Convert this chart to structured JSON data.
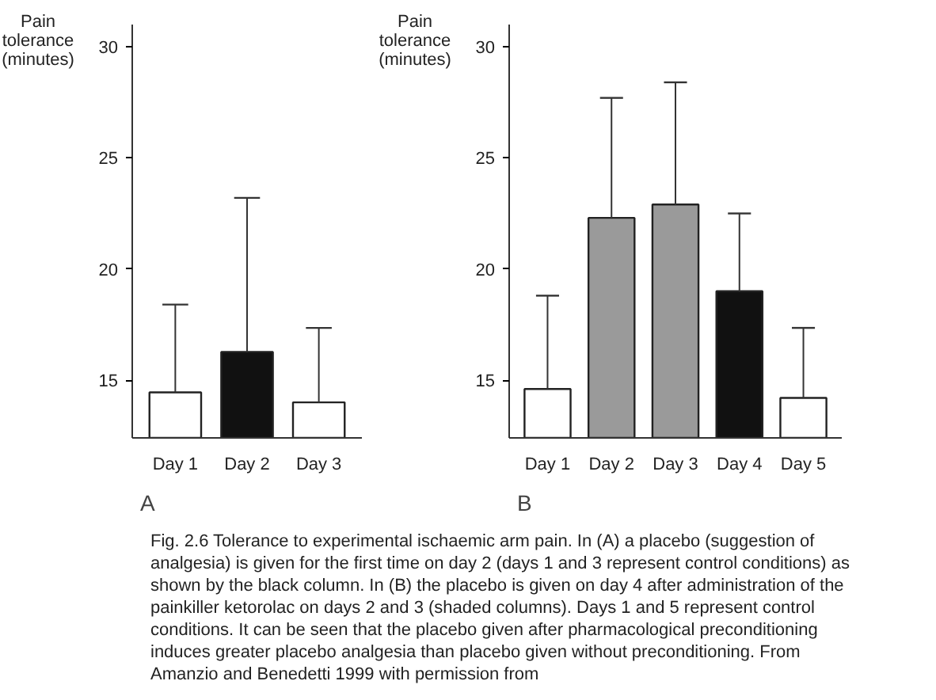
{
  "chart_data": [
    {
      "type": "bar",
      "title": "A",
      "ylabel": "Pain\ntolerance\n(minutes)",
      "categories": [
        "Day 1",
        "Day 2",
        "Day 3"
      ],
      "values": [
        14.45,
        16.27,
        14.0
      ],
      "colors": [
        "#ffffff",
        "#111111",
        "#ffffff"
      ],
      "errors": [
        [
          14.45,
          18.4
        ],
        [
          16.27,
          23.2
        ],
        [
          14.0,
          17.35
        ]
      ],
      "ylim": [
        12.4,
        31
      ],
      "yticks": [
        15,
        20,
        25,
        30
      ],
      "grid": false,
      "annotations": [
        "Fig. 2.6 Tolerance to experimental ischaemic arm pain. In (A) a placebo (suggestion of analgesia) is given for the first time on day 2 (days 1 and 3 represent control conditions) as shown by the black column. In (B) the placebo is given on day 4 after administration of the painkiller ketorolac on days 2 and 3 (shaded columns). Days 1 and 5 represent control conditions. It can be seen that the placebo given after pharmacological preconditioning induces greater placebo analgesia than placebo given without preconditioning. From Amanzio and Benedetti 1999 with permission from"
      ]
    },
    {
      "type": "bar",
      "title": "B",
      "ylabel": "Pain\ntolerance\n(minutes)",
      "categories": [
        "Day 1",
        "Day 2",
        "Day 3",
        "Day 4",
        "Day 5"
      ],
      "values": [
        14.6,
        22.3,
        22.9,
        19.0,
        14.2
      ],
      "colors": [
        "#ffffff",
        "#9a9a9a",
        "#9a9a9a",
        "#111111",
        "#ffffff"
      ],
      "errors": [
        [
          14.6,
          18.8
        ],
        [
          22.3,
          27.7
        ],
        [
          22.9,
          28.4
        ],
        [
          19.0,
          22.5
        ],
        [
          14.2,
          17.35
        ]
      ],
      "ylim": [
        12.4,
        31
      ],
      "yticks": [
        15,
        20,
        25,
        30
      ],
      "grid": false
    }
  ]
}
